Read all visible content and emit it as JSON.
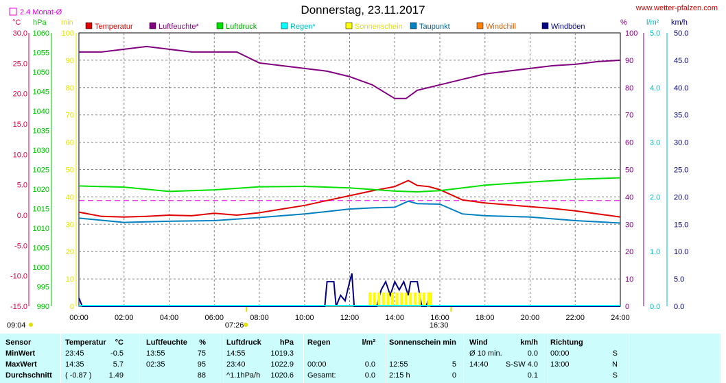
{
  "header": {
    "title": "Donnerstag, 23.11.2017",
    "site": "www.wetter-pfalzen.com",
    "month_avg_label": "2.4 Monat-Ø",
    "unit_c": "°C",
    "unit_hpa": "hPa",
    "unit_min": "min",
    "unit_pct": "%",
    "unit_lm2": "l/m²",
    "unit_kmh": "km/h",
    "sunrise": "07:26",
    "sunset": "16:30",
    "left_time": "09:04"
  },
  "colors": {
    "temperature": "#e00000",
    "humidity": "#800080",
    "pressure": "#00e000",
    "rain": "#00ffff",
    "sunshine": "#ffff00",
    "dewpoint": "#0080c0",
    "windchill": "#ff8000",
    "gusts": "#000080",
    "month_avg": "#e000e0"
  },
  "chart_data": {
    "type": "line",
    "title": "Donnerstag, 23.11.2017",
    "x_ticks": [
      "00:00",
      "02:00",
      "04:00",
      "06:00",
      "08:00",
      "10:00",
      "12:00",
      "14:00",
      "16:00",
      "18:00",
      "20:00",
      "22:00",
      "24:00"
    ],
    "axes": {
      "temperature_c": {
        "range": [
          -15,
          30
        ],
        "ticks": [
          "30.0",
          "25.0",
          "20.0",
          "15.0",
          "10.0",
          "5.0",
          "0.0",
          "-5.0",
          "-10.0",
          "-15.0"
        ]
      },
      "pressure_hpa": {
        "range": [
          990,
          1060
        ],
        "ticks": [
          "1060",
          "1055",
          "1050",
          "1045",
          "1040",
          "1035",
          "1030",
          "1025",
          "1020",
          "1015",
          "1010",
          "1005",
          "1000",
          "995",
          "990"
        ]
      },
      "sunshine_min": {
        "range": [
          0,
          100
        ],
        "ticks": [
          "100",
          "90",
          "80",
          "70",
          "60",
          "50",
          "40",
          "30",
          "20",
          "10",
          "0"
        ]
      },
      "humidity_pct": {
        "range": [
          0,
          100
        ],
        "ticks": [
          "100",
          "90",
          "80",
          "70",
          "60",
          "50",
          "40",
          "30",
          "20",
          "10",
          "0"
        ]
      },
      "rain_lm2": {
        "range": [
          0,
          5
        ],
        "ticks": [
          "5.0",
          "4.0",
          "3.0",
          "2.0",
          "1.0",
          "0.0"
        ]
      },
      "wind_kmh": {
        "range": [
          0,
          50
        ],
        "ticks": [
          "50.0",
          "45.0",
          "40.0",
          "35.0",
          "30.0",
          "25.0",
          "20.0",
          "15.0",
          "10.0",
          "5.0",
          "0.0"
        ]
      }
    },
    "month_avg_temp": 2.4,
    "series": [
      {
        "name": "Temperatur",
        "axis": "temperature_c",
        "points": [
          [
            0,
            0.5
          ],
          [
            1,
            -0.2
          ],
          [
            2,
            -0.3
          ],
          [
            3,
            -0.2
          ],
          [
            4,
            0.0
          ],
          [
            5,
            -0.1
          ],
          [
            6,
            0.3
          ],
          [
            7,
            0.0
          ],
          [
            8,
            0.4
          ],
          [
            9,
            1.0
          ],
          [
            10,
            1.6
          ],
          [
            11,
            2.4
          ],
          [
            12,
            3.2
          ],
          [
            13,
            4.0
          ],
          [
            14,
            4.7
          ],
          [
            14.6,
            5.7
          ],
          [
            15,
            4.9
          ],
          [
            15.5,
            4.7
          ],
          [
            16,
            4.2
          ],
          [
            17,
            2.5
          ],
          [
            18,
            2.0
          ],
          [
            19,
            1.7
          ],
          [
            20,
            1.4
          ],
          [
            21,
            1.1
          ],
          [
            22,
            0.7
          ],
          [
            23,
            0.2
          ],
          [
            24,
            -0.3
          ]
        ]
      },
      {
        "name": "Luftfeuchte*",
        "axis": "humidity_pct",
        "points": [
          [
            0,
            93
          ],
          [
            1,
            93
          ],
          [
            2,
            94
          ],
          [
            3,
            95
          ],
          [
            4,
            94
          ],
          [
            5,
            93
          ],
          [
            6,
            93
          ],
          [
            7,
            93
          ],
          [
            8,
            89
          ],
          [
            9,
            88
          ],
          [
            10,
            87
          ],
          [
            11,
            86
          ],
          [
            12,
            84
          ],
          [
            13,
            81
          ],
          [
            14,
            76
          ],
          [
            14.5,
            76
          ],
          [
            15,
            79
          ],
          [
            16,
            81
          ],
          [
            17,
            83
          ],
          [
            18,
            85
          ],
          [
            19,
            86
          ],
          [
            20,
            87
          ],
          [
            21,
            88
          ],
          [
            22,
            88.5
          ],
          [
            23,
            89.5
          ],
          [
            24,
            90
          ]
        ]
      },
      {
        "name": "Luftdruck",
        "axis": "pressure_hpa",
        "points": [
          [
            0,
            1020.8
          ],
          [
            2,
            1020.5
          ],
          [
            4,
            1019.4
          ],
          [
            6,
            1019.8
          ],
          [
            8,
            1020.6
          ],
          [
            10,
            1020.7
          ],
          [
            12,
            1020.3
          ],
          [
            14,
            1019.5
          ],
          [
            15,
            1019.3
          ],
          [
            16,
            1019.6
          ],
          [
            18,
            1021.0
          ],
          [
            20,
            1021.8
          ],
          [
            22,
            1022.5
          ],
          [
            24,
            1022.9
          ]
        ]
      },
      {
        "name": "Taupunkt",
        "axis": "temperature_c",
        "points": [
          [
            0,
            -0.5
          ],
          [
            2,
            -1.2
          ],
          [
            4,
            -1.0
          ],
          [
            6,
            -0.9
          ],
          [
            8,
            -0.4
          ],
          [
            10,
            0.2
          ],
          [
            11,
            0.6
          ],
          [
            12,
            1.0
          ],
          [
            13,
            1.2
          ],
          [
            14,
            1.3
          ],
          [
            14.6,
            2.3
          ],
          [
            15,
            1.9
          ],
          [
            16,
            1.8
          ],
          [
            17,
            0.2
          ],
          [
            18,
            -0.1
          ],
          [
            20,
            -0.3
          ],
          [
            22,
            -0.9
          ],
          [
            24,
            -1.3
          ]
        ]
      },
      {
        "name": "Windböen",
        "axis": "wind_kmh",
        "points": [
          [
            0,
            1.5
          ],
          [
            0.15,
            0
          ],
          [
            10.9,
            0
          ],
          [
            11.0,
            4.5
          ],
          [
            11.3,
            4.5
          ],
          [
            11.4,
            0
          ],
          [
            11.6,
            2.0
          ],
          [
            11.8,
            1.0
          ],
          [
            12.0,
            4.5
          ],
          [
            12.1,
            6.0
          ],
          [
            12.2,
            0
          ],
          [
            13.2,
            0
          ],
          [
            13.4,
            3.0
          ],
          [
            13.6,
            4.5
          ],
          [
            13.8,
            2.0
          ],
          [
            14.0,
            4.5
          ],
          [
            14.2,
            3.0
          ],
          [
            14.4,
            4.5
          ],
          [
            14.6,
            2.0
          ],
          [
            14.7,
            4.5
          ],
          [
            15.0,
            4.5
          ],
          [
            15.2,
            0
          ],
          [
            15.4,
            0
          ],
          [
            15.5,
            1.5
          ],
          [
            15.6,
            0
          ],
          [
            24,
            0
          ]
        ]
      },
      {
        "name": "Sonnenschein",
        "axis": "sunshine_min",
        "bars": [
          [
            12.9,
            5
          ],
          [
            13.1,
            5
          ],
          [
            13.3,
            5
          ],
          [
            13.5,
            5
          ],
          [
            13.7,
            5
          ],
          [
            13.9,
            5
          ],
          [
            14.1,
            5
          ],
          [
            14.3,
            5
          ],
          [
            14.5,
            5
          ],
          [
            14.7,
            5
          ],
          [
            14.9,
            5
          ],
          [
            15.1,
            5
          ],
          [
            15.3,
            5
          ],
          [
            15.5,
            5
          ],
          [
            15.6,
            5
          ]
        ]
      }
    ],
    "legend": [
      {
        "label": "Temperatur",
        "color": "#e00000"
      },
      {
        "label": "Luftfeuchte*",
        "color": "#800080"
      },
      {
        "label": "Luftdruck",
        "color": "#00e000"
      },
      {
        "label": "Regen*",
        "color": "#00ffff"
      },
      {
        "label": "Sonnenschein",
        "color": "#ffff00"
      },
      {
        "label": "Taupunkt",
        "color": "#0080c0"
      },
      {
        "label": "Windchill",
        "color": "#ff8000"
      },
      {
        "label": "Windböen",
        "color": "#000080"
      }
    ]
  },
  "table": {
    "rows": [
      [
        "Sensor",
        "Temperatur",
        "°C",
        "Luftfeuchte",
        "%",
        "Luftdruck",
        "hPa",
        "Regen",
        "l/m²",
        "Sonnenschein min",
        "",
        "Wind",
        "km/h",
        "Richtung",
        ""
      ],
      [
        "MinWert",
        "23:45",
        "-0.5",
        "13:55",
        "75",
        "14:55",
        "1019.3",
        "",
        "",
        "",
        "",
        "Ø 10 min.",
        "0.0",
        "00:00",
        "S"
      ],
      [
        "MaxWert",
        "14:35",
        "5.7",
        "02:35",
        "95",
        "23:40",
        "1022.9",
        "00:00",
        "0.0",
        "12:55",
        "5",
        "14:40",
        "S-SW 4.0",
        "13:00",
        "N"
      ],
      [
        "Durchschnitt",
        "( -0.87 )",
        "1.49",
        "",
        "88",
        "^1.1hPa/h",
        "1020.6",
        "Gesamt:",
        "0.0",
        "2:15 h",
        "0",
        "",
        "0.1",
        "",
        "S"
      ]
    ]
  }
}
